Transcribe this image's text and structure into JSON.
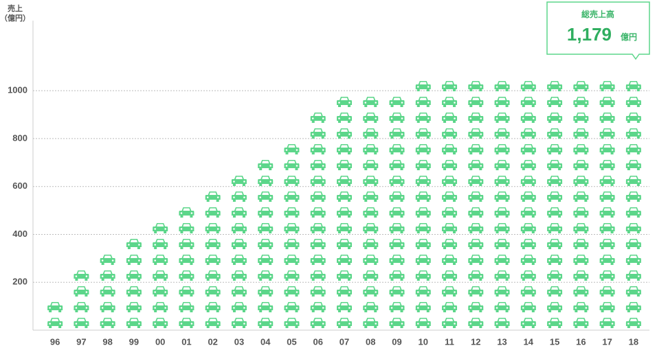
{
  "chart_data": {
    "type": "pictograph",
    "y_label": "売上",
    "y_unit": "（億円）",
    "categories": [
      "96",
      "97",
      "98",
      "99",
      "00",
      "01",
      "02",
      "03",
      "04",
      "05",
      "06",
      "07",
      "08",
      "09",
      "10",
      "11",
      "12",
      "13",
      "14",
      "15",
      "16",
      "17",
      "18"
    ],
    "values": [
      130,
      260,
      330,
      400,
      460,
      530,
      590,
      660,
      720,
      790,
      920,
      990,
      990,
      990,
      1050,
      1050,
      1050,
      1050,
      1050,
      1050,
      1050,
      1050,
      1050
    ],
    "color": "#5cd68a",
    "ylim": [
      0,
      1290
    ],
    "yticks": [
      200,
      400,
      600,
      800,
      1000
    ],
    "grid": true,
    "callout": {
      "title": "総売上高",
      "value": "1,179",
      "unit": "億円"
    }
  }
}
